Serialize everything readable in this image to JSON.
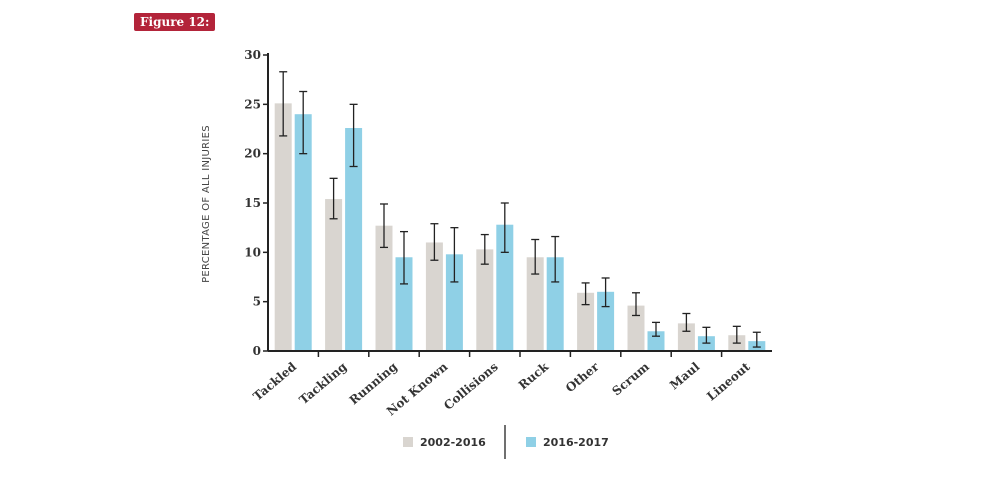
{
  "figure_label": "Figure 12:",
  "chart_data": {
    "type": "bar",
    "title": "",
    "xlabel": "",
    "ylabel": "PERCENTAGE OF ALL INJURIES",
    "ylim": [
      0,
      30
    ],
    "yticks": [
      0,
      5,
      10,
      15,
      20,
      25,
      30
    ],
    "categories": [
      "Tackled",
      "Tackling",
      "Running",
      "Not Known",
      "Collisions",
      "Ruck",
      "Other",
      "Scrum",
      "Maul",
      "Lineout"
    ],
    "series": [
      {
        "name": "2002-2016",
        "color": "#d9d5d0",
        "values": [
          25.1,
          15.4,
          12.7,
          11.0,
          10.3,
          9.5,
          5.9,
          4.6,
          2.8,
          1.6
        ],
        "error_low": [
          21.8,
          13.4,
          10.5,
          9.2,
          8.8,
          7.8,
          4.7,
          3.6,
          2.0,
          0.8
        ],
        "error_high": [
          28.3,
          17.5,
          14.9,
          12.9,
          11.8,
          11.3,
          6.9,
          5.9,
          3.8,
          2.5
        ]
      },
      {
        "name": "2016-2017",
        "color": "#8fd0e6",
        "values": [
          24.0,
          22.6,
          9.5,
          9.8,
          12.8,
          9.5,
          6.0,
          2.0,
          1.5,
          1.0
        ],
        "error_low": [
          20.0,
          18.7,
          6.8,
          7.0,
          10.0,
          7.0,
          4.5,
          1.5,
          0.8,
          0.4
        ],
        "error_high": [
          26.3,
          25.0,
          12.1,
          12.5,
          15.0,
          11.6,
          7.4,
          2.9,
          2.4,
          1.9
        ]
      }
    ],
    "grid": false,
    "legend": "bottom"
  }
}
